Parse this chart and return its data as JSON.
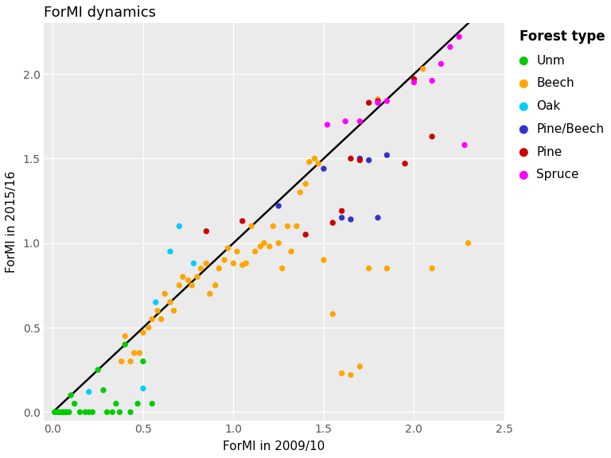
{
  "title": "ForMI dynamics",
  "xlabel": "ForMI in 2009/10",
  "ylabel": "ForMI in 2015/16",
  "xlim": [
    -0.05,
    2.5
  ],
  "ylim": [
    -0.05,
    2.3
  ],
  "xticks": [
    0.0,
    0.5,
    1.0,
    1.5,
    2.0,
    2.5
  ],
  "yticks": [
    0.0,
    0.5,
    1.0,
    1.5,
    2.0
  ],
  "panel_bg": "#ebebeb",
  "grid_color": "#ffffff",
  "legend_title": "Forest type",
  "forest_types": {
    "Unm": {
      "color": "#00CC00",
      "x": [
        0.01,
        0.02,
        0.03,
        0.04,
        0.05,
        0.06,
        0.07,
        0.08,
        0.09,
        0.1,
        0.12,
        0.15,
        0.18,
        0.2,
        0.22,
        0.25,
        0.28,
        0.3,
        0.33,
        0.35,
        0.37,
        0.4,
        0.43,
        0.47,
        0.5,
        0.55
      ],
      "y": [
        0.0,
        0.0,
        0.0,
        0.0,
        0.0,
        0.0,
        0.0,
        0.0,
        0.0,
        0.1,
        0.05,
        0.0,
        0.0,
        0.0,
        0.0,
        0.25,
        0.13,
        0.0,
        0.0,
        0.05,
        0.0,
        0.4,
        0.0,
        0.05,
        0.3,
        0.05
      ]
    },
    "Beech": {
      "color": "#FFA500",
      "x": [
        0.38,
        0.4,
        0.43,
        0.45,
        0.48,
        0.5,
        0.53,
        0.55,
        0.58,
        0.6,
        0.62,
        0.65,
        0.67,
        0.7,
        0.72,
        0.75,
        0.77,
        0.8,
        0.82,
        0.85,
        0.87,
        0.9,
        0.92,
        0.95,
        0.97,
        1.0,
        1.02,
        1.05,
        1.07,
        1.1,
        1.12,
        1.15,
        1.17,
        1.2,
        1.22,
        1.25,
        1.27,
        1.3,
        1.32,
        1.35,
        1.37,
        1.4,
        1.42,
        1.45,
        1.47,
        1.5,
        1.55,
        1.6,
        1.65,
        1.7,
        1.75,
        1.8,
        1.85,
        2.05,
        2.1,
        2.3
      ],
      "y": [
        0.3,
        0.45,
        0.3,
        0.35,
        0.35,
        0.47,
        0.5,
        0.55,
        0.6,
        0.55,
        0.7,
        0.65,
        0.6,
        0.75,
        0.8,
        0.78,
        0.75,
        0.8,
        0.85,
        0.88,
        0.7,
        0.75,
        0.85,
        0.9,
        0.97,
        0.88,
        0.95,
        0.87,
        0.88,
        1.1,
        0.95,
        0.98,
        1.0,
        0.98,
        1.1,
        1.0,
        0.85,
        1.1,
        0.95,
        1.1,
        1.3,
        1.35,
        1.48,
        1.5,
        1.47,
        0.9,
        0.58,
        0.23,
        0.22,
        0.27,
        0.85,
        1.85,
        0.85,
        2.03,
        0.85,
        1.0
      ]
    },
    "Oak": {
      "color": "#00CCFF",
      "x": [
        0.2,
        0.5,
        0.57,
        0.65,
        0.7,
        0.78
      ],
      "y": [
        0.12,
        0.14,
        0.65,
        0.95,
        1.1,
        0.88
      ]
    },
    "Pine/Beech": {
      "color": "#3333CC",
      "x": [
        1.25,
        1.5,
        1.6,
        1.65,
        1.7,
        1.75,
        1.8,
        1.85
      ],
      "y": [
        1.22,
        1.44,
        1.15,
        1.14,
        1.5,
        1.49,
        1.15,
        1.52
      ]
    },
    "Pine": {
      "color": "#CC0000",
      "x": [
        0.85,
        1.05,
        1.4,
        1.55,
        1.6,
        1.65,
        1.7,
        1.75,
        1.8,
        1.95,
        2.0,
        2.1
      ],
      "y": [
        1.07,
        1.13,
        1.05,
        1.12,
        1.19,
        1.5,
        1.49,
        1.83,
        1.84,
        1.47,
        1.97,
        1.63
      ]
    },
    "Spruce": {
      "color": "#FF00FF",
      "x": [
        1.52,
        1.62,
        1.7,
        1.8,
        1.85,
        2.0,
        2.1,
        2.15,
        2.2,
        2.25,
        2.28
      ],
      "y": [
        1.7,
        1.72,
        1.72,
        1.83,
        1.84,
        1.95,
        1.96,
        2.06,
        2.16,
        2.22,
        1.58
      ]
    }
  },
  "title_fontsize": 13,
  "axis_label_fontsize": 11,
  "tick_fontsize": 10,
  "legend_title_fontsize": 12,
  "legend_fontsize": 11,
  "marker_size": 28,
  "marker_alpha": 1.0
}
